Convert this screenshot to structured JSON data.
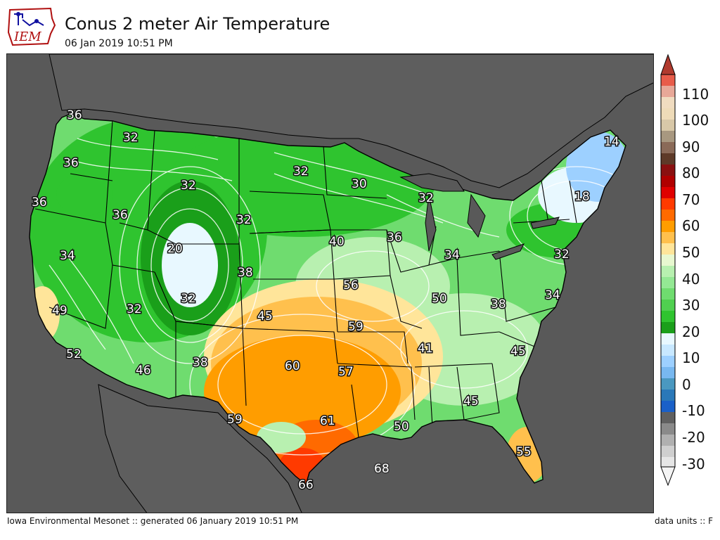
{
  "logo": {
    "text": "IEM"
  },
  "header": {
    "title": "Conus 2 meter Air Temperature",
    "subtitle": "06 Jan 2019 10:51 PM"
  },
  "footer": {
    "left": "Iowa Environmental Mesonet :: generated 06 January 2019 10:51 PM",
    "right": "data units :: F"
  },
  "colorbar": {
    "tick_labels": [
      "110",
      "100",
      "90",
      "80",
      "70",
      "60",
      "50",
      "40",
      "30",
      "20",
      "10",
      "0",
      "-10",
      "-20",
      "-30"
    ]
  },
  "colors": {
    "ocean": "#595959",
    "green_dark": "#1a9f1a",
    "green": "#2fc42f",
    "green_light": "#6fdc6f",
    "green_pale": "#b8f0b0",
    "yellow_pale": "#ffe59a",
    "orange_light": "#ffc04d",
    "orange": "#ff9d00",
    "orange_red": "#ff6a00",
    "red_orange": "#ff3a00",
    "white_blue": "#e8f8ff",
    "light_blue": "#9dd0ff"
  },
  "map_labels": [
    {
      "id": "l1",
      "text": "36"
    },
    {
      "id": "l2",
      "text": "32"
    },
    {
      "id": "l3",
      "text": "36"
    },
    {
      "id": "l4",
      "text": "36"
    },
    {
      "id": "l5",
      "text": "36"
    },
    {
      "id": "l6",
      "text": "32"
    },
    {
      "id": "l7",
      "text": "32"
    },
    {
      "id": "l8",
      "text": "30"
    },
    {
      "id": "l9",
      "text": "32"
    },
    {
      "id": "l10",
      "text": "14"
    },
    {
      "id": "l11",
      "text": "18"
    },
    {
      "id": "l12",
      "text": "20"
    },
    {
      "id": "l13",
      "text": "32"
    },
    {
      "id": "l14",
      "text": "40"
    },
    {
      "id": "l15",
      "text": "36"
    },
    {
      "id": "l16",
      "text": "34"
    },
    {
      "id": "l17",
      "text": "32"
    },
    {
      "id": "l18",
      "text": "34"
    },
    {
      "id": "l19",
      "text": "38"
    },
    {
      "id": "l20",
      "text": "32"
    },
    {
      "id": "l21",
      "text": "56"
    },
    {
      "id": "l22",
      "text": "50"
    },
    {
      "id": "l23",
      "text": "38"
    },
    {
      "id": "l24",
      "text": "34"
    },
    {
      "id": "l25",
      "text": "49"
    },
    {
      "id": "l26",
      "text": "32"
    },
    {
      "id": "l27",
      "text": "45"
    },
    {
      "id": "l28",
      "text": "59"
    },
    {
      "id": "l29",
      "text": "41"
    },
    {
      "id": "l30",
      "text": "45"
    },
    {
      "id": "l31",
      "text": "52"
    },
    {
      "id": "l32",
      "text": "46"
    },
    {
      "id": "l33",
      "text": "38"
    },
    {
      "id": "l34",
      "text": "60"
    },
    {
      "id": "l35",
      "text": "57"
    },
    {
      "id": "l36",
      "text": "45"
    },
    {
      "id": "l37",
      "text": "59"
    },
    {
      "id": "l38",
      "text": "61"
    },
    {
      "id": "l39",
      "text": "50"
    },
    {
      "id": "l40",
      "text": "55"
    },
    {
      "id": "l41",
      "text": "68"
    },
    {
      "id": "l42",
      "text": "66"
    }
  ]
}
